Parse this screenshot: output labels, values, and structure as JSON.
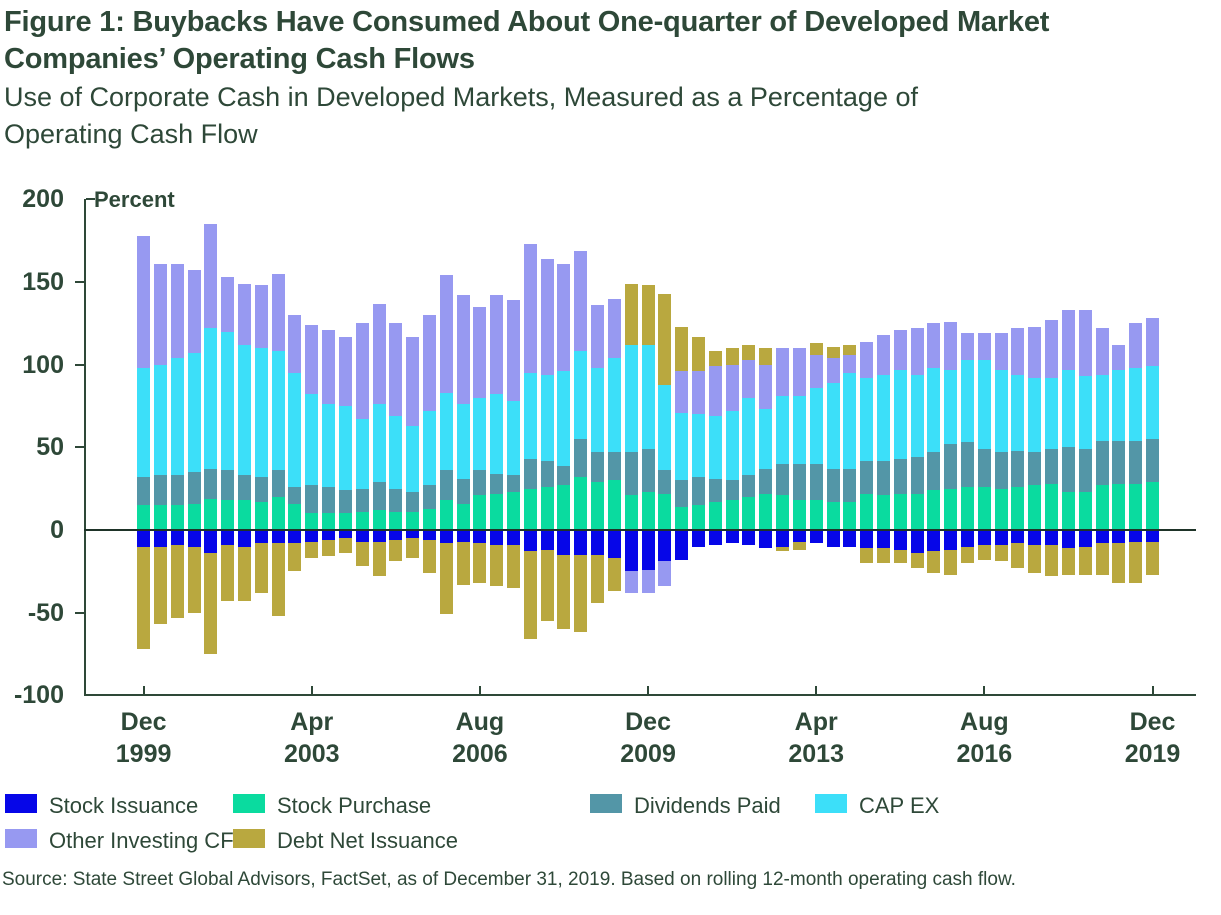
{
  "title": {
    "line1": "Figure 1: Buybacks Have Consumed About One-quarter of Developed Market",
    "line2": "Companies’ Operating Cash Flows"
  },
  "subtitle": {
    "line1": "Use of Corporate Cash in Developed Markets, Measured as a Percentage of",
    "line2": "Operating Cash Flow"
  },
  "y_axis": {
    "label": "Percent",
    "ticks": [
      200,
      150,
      100,
      50,
      0,
      -50,
      -100
    ],
    "range": [
      -100,
      200
    ]
  },
  "x_axis": {
    "tick_labels": [
      {
        "month": "Dec",
        "year": "1999"
      },
      {
        "month": "Apr",
        "year": "2003"
      },
      {
        "month": "Aug",
        "year": "2006"
      },
      {
        "month": "Dec",
        "year": "2009"
      },
      {
        "month": "Apr",
        "year": "2013"
      },
      {
        "month": "Aug",
        "year": "2016"
      },
      {
        "month": "Dec",
        "year": "2019"
      }
    ],
    "tick_bar_indices": [
      0,
      10,
      20,
      30,
      40,
      50,
      60
    ]
  },
  "legend": [
    {
      "label": "Stock Issuance",
      "color": "#0606E8"
    },
    {
      "label": "Stock Purchase",
      "color": "#0ADB9F"
    },
    {
      "label": "Dividends Paid",
      "color": "#5396A7"
    },
    {
      "label": "CAP EX",
      "color": "#3CDFF9"
    },
    {
      "label": "Other Investing CF",
      "color": "#9799F1"
    },
    {
      "label": "Debt Net Issuance",
      "color": "#B9A83F"
    }
  ],
  "source": "Source: State Street Global Advisors, FactSet, as of December 31, 2019. Based on rolling 12-month operating cash flow.",
  "chart_data": {
    "type": "bar",
    "stacked": true,
    "title": "Use of Corporate Cash in Developed Markets, Measured as a Percentage of Operating Cash Flow",
    "ylabel": "Percent",
    "ylim": [
      -100,
      200
    ],
    "grid": false,
    "legend_position": "bottom",
    "positive_stack_order": [
      "Stock Purchase",
      "Dividends Paid",
      "CAP EX",
      "Other Investing CF",
      "Debt Net Issuance"
    ],
    "negative_stack_order": [
      "Stock Issuance",
      "Other Investing CF",
      "Debt Net Issuance"
    ],
    "x": [
      "Dec 1999",
      "Apr 2000",
      "Aug 2000",
      "Dec 2000",
      "Apr 2001",
      "Aug 2001",
      "Dec 2001",
      "Apr 2002",
      "Aug 2002",
      "Dec 2002",
      "Apr 2003",
      "Aug 2003",
      "Dec 2003",
      "Apr 2004",
      "Aug 2004",
      "Dec 2004",
      "Apr 2005",
      "Aug 2005",
      "Dec 2005",
      "Apr 2006",
      "Aug 2006",
      "Dec 2006",
      "Apr 2007",
      "Aug 2007",
      "Dec 2007",
      "Apr 2008",
      "Aug 2008",
      "Dec 2008",
      "Apr 2009",
      "Aug 2009",
      "Dec 2009",
      "Apr 2010",
      "Aug 2010",
      "Dec 2010",
      "Apr 2011",
      "Aug 2011",
      "Dec 2011",
      "Apr 2012",
      "Aug 2012",
      "Dec 2012",
      "Apr 2013",
      "Aug 2013",
      "Dec 2013",
      "Apr 2014",
      "Aug 2014",
      "Dec 2014",
      "Apr 2015",
      "Aug 2015",
      "Dec 2015",
      "Apr 2016",
      "Aug 2016",
      "Dec 2016",
      "Apr 2017",
      "Aug 2017",
      "Dec 2017",
      "Apr 2018",
      "Aug 2018",
      "Dec 2018",
      "Apr 2019",
      "Aug 2019",
      "Dec 2019"
    ],
    "series": [
      {
        "name": "Stock Issuance",
        "color": "#0606E8",
        "values": [
          -10,
          -10,
          -9,
          -10,
          -14,
          -9,
          -10,
          -8,
          -8,
          -8,
          -7,
          -6,
          -5,
          -7,
          -7,
          -6,
          -5,
          -6,
          -8,
          -7,
          -8,
          -9,
          -9,
          -13,
          -12,
          -15,
          -15,
          -15,
          -17,
          -25,
          -24,
          -19,
          -18,
          -10,
          -9,
          -8,
          -9,
          -11,
          -10,
          -7,
          -8,
          -10,
          -10,
          -11,
          -11,
          -12,
          -14,
          -13,
          -12,
          -10,
          -9,
          -9,
          -8,
          -9,
          -9,
          -11,
          -10,
          -8,
          -8,
          -7,
          -7
        ]
      },
      {
        "name": "Stock Purchase",
        "color": "#0ADB9F",
        "values": [
          15,
          15,
          15,
          16,
          19,
          18,
          18,
          17,
          20,
          16,
          10,
          10,
          10,
          11,
          12,
          11,
          11,
          13,
          18,
          16,
          21,
          22,
          23,
          25,
          26,
          27,
          32,
          29,
          30,
          21,
          23,
          22,
          14,
          15,
          17,
          18,
          20,
          22,
          21,
          18,
          18,
          17,
          17,
          22,
          21,
          22,
          22,
          24,
          25,
          26,
          26,
          25,
          26,
          27,
          28,
          23,
          23,
          27,
          28,
          28,
          29
        ]
      },
      {
        "name": "Dividends Paid",
        "color": "#5396A7",
        "values": [
          17,
          18,
          18,
          19,
          18,
          18,
          15,
          15,
          16,
          10,
          17,
          16,
          14,
          14,
          17,
          14,
          12,
          14,
          18,
          15,
          15,
          12,
          10,
          18,
          16,
          12,
          23,
          18,
          17,
          26,
          26,
          14,
          16,
          17,
          14,
          12,
          13,
          15,
          19,
          22,
          22,
          20,
          20,
          20,
          21,
          21,
          22,
          23,
          27,
          27,
          23,
          22,
          22,
          20,
          21,
          27,
          26,
          27,
          26,
          26,
          26
        ]
      },
      {
        "name": "CAP EX",
        "color": "#3CDFF9",
        "values": [
          66,
          67,
          71,
          72,
          85,
          84,
          79,
          78,
          72,
          69,
          55,
          50,
          51,
          42,
          47,
          44,
          40,
          45,
          47,
          45,
          44,
          48,
          45,
          52,
          52,
          57,
          53,
          51,
          57,
          65,
          63,
          52,
          41,
          38,
          38,
          42,
          47,
          36,
          41,
          41,
          46,
          52,
          58,
          50,
          52,
          54,
          50,
          51,
          45,
          50,
          54,
          50,
          46,
          45,
          43,
          47,
          44,
          40,
          43,
          44,
          44
        ]
      },
      {
        "name": "Other Investing CF",
        "color": "#9799F1",
        "values": [
          80,
          61,
          57,
          50,
          63,
          33,
          37,
          38,
          47,
          35,
          42,
          45,
          42,
          58,
          61,
          56,
          54,
          58,
          71,
          66,
          55,
          60,
          61,
          78,
          70,
          65,
          61,
          38,
          36,
          -13,
          -14,
          -15,
          25,
          26,
          30,
          28,
          23,
          27,
          29,
          29,
          20,
          15,
          11,
          22,
          24,
          24,
          28,
          27,
          29,
          16,
          16,
          22,
          28,
          31,
          35,
          36,
          40,
          28,
          15,
          27,
          29
        ]
      },
      {
        "name": "Debt Net Issuance",
        "color": "#B9A83F",
        "values": [
          -62,
          -47,
          -44,
          -40,
          -61,
          -34,
          -33,
          -30,
          -44,
          -17,
          -10,
          -10,
          -9,
          -15,
          -21,
          -13,
          -12,
          -20,
          -43,
          -26,
          -24,
          -25,
          -26,
          -53,
          -43,
          -45,
          -47,
          -29,
          -20,
          37,
          36,
          55,
          27,
          21,
          9,
          10,
          9,
          10,
          -3,
          -5,
          7,
          7,
          6,
          -9,
          -9,
          -8,
          -9,
          -13,
          -15,
          -10,
          -9,
          -10,
          -15,
          -17,
          -19,
          -16,
          -17,
          -19,
          -24,
          -25,
          -20
        ]
      }
    ]
  }
}
